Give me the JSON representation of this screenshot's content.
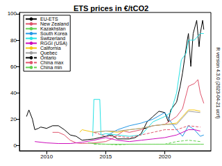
{
  "chart_data": {
    "type": "line",
    "title": "ETS prices in €/tCO2",
    "annotations": [
      "R version 4.3.0 (2023-04-21 ucrt)"
    ],
    "xlim": [
      2007.7,
      2023.9
    ],
    "xticks": [
      2010,
      2015,
      2020
    ],
    "ylim": [
      -4,
      101
    ],
    "yticks": [
      0,
      20,
      40,
      60,
      80,
      100
    ],
    "grid": false,
    "legend": "top-left",
    "series": [
      {
        "name": "EU-ETS",
        "color": "#000000",
        "line_style": "solid",
        "x": [
          2008.3,
          2008.5,
          2008.8,
          2009.0,
          2009.3,
          2009.5,
          2010.0,
          2010.5,
          2011.0,
          2011.5,
          2012.0,
          2012.5,
          2013.0,
          2013.5,
          2014.0,
          2014.5,
          2015.0,
          2015.5,
          2016.0,
          2016.5,
          2017.0,
          2017.5,
          2018.0,
          2018.5,
          2019.0,
          2019.5,
          2020.0,
          2020.3,
          2020.5,
          2021.0,
          2021.3,
          2021.5,
          2021.9,
          2022.0,
          2022.2,
          2022.4,
          2022.7,
          2022.9,
          2023.0,
          2023.2,
          2023.3
        ],
        "values": [
          22,
          27,
          20,
          12,
          13,
          14,
          13,
          15,
          15,
          12,
          8,
          7,
          4,
          4.5,
          5,
          6,
          7,
          8,
          5,
          5,
          5,
          6,
          9,
          18,
          22,
          26,
          25,
          18,
          27,
          33,
          45,
          55,
          80,
          85,
          60,
          85,
          95,
          75,
          85,
          95,
          88
        ]
      },
      {
        "name": "New Zealand",
        "color": "#DF536B",
        "line_style": "solid",
        "x": [
          2010.5,
          2011.0,
          2011.5,
          2012.0,
          2012.5,
          2013.0,
          2014.0,
          2015.0,
          2015.5,
          2016.0,
          2016.5,
          2017.0,
          2018.0,
          2019.0,
          2020.0,
          2020.5,
          2021.0,
          2021.5,
          2022.0,
          2022.5,
          2022.8,
          2023.0,
          2023.3
        ],
        "values": [
          10,
          10,
          8,
          4,
          2,
          1.5,
          2,
          3,
          5,
          8,
          11,
          10,
          12,
          15,
          16,
          19,
          22,
          28,
          45,
          47,
          50,
          40,
          32
        ]
      },
      {
        "name": "Kazakhstan",
        "color": "#61D04F",
        "line_style": "solid",
        "x": [
          2013.5,
          2014.0,
          2015.0,
          2016.0,
          2018.0,
          2019.0,
          2020.0,
          2021.0,
          2022.0,
          2023.0,
          2023.3
        ],
        "values": [
          2,
          1.5,
          1,
          1,
          1,
          1,
          1,
          1,
          1,
          1,
          1
        ]
      },
      {
        "name": "South Korea",
        "color": "#2297E6",
        "line_style": "solid",
        "x": [
          2015.0,
          2016.0,
          2017.0,
          2018.0,
          2019.0,
          2020.0,
          2020.5,
          2021.0,
          2021.5,
          2022.0,
          2022.5,
          2023.0,
          2023.3
        ],
        "values": [
          7,
          12,
          15,
          17,
          20,
          25,
          18,
          12,
          7,
          15,
          12,
          7,
          8
        ]
      },
      {
        "name": "Switzerland",
        "color": "#28E2E5",
        "line_style": "solid",
        "x": [
          2013.9,
          2014.0,
          2014.5,
          2014.6,
          2015.0,
          2016.0,
          2017.0,
          2018.0,
          2019.0,
          2020.0,
          2020.5,
          2021.0,
          2021.4,
          2021.8,
          2022.0,
          2022.5,
          2023.0,
          2023.3
        ],
        "values": [
          7,
          35,
          35,
          8,
          9,
          8,
          7,
          8,
          18,
          22,
          25,
          40,
          65,
          70,
          80,
          80,
          85,
          85
        ]
      },
      {
        "name": "RGGI (USA)",
        "color": "#CD0BBC",
        "line_style": "solid",
        "x": [
          2009.0,
          2010.0,
          2011.0,
          2012.0,
          2013.0,
          2014.0,
          2015.0,
          2016.0,
          2017.0,
          2018.0,
          2019.0,
          2020.0,
          2021.0,
          2021.5,
          2022.0,
          2022.5,
          2023.0
        ],
        "values": [
          3,
          2,
          1.5,
          1.5,
          2.5,
          4,
          6,
          4,
          3,
          4,
          5,
          6,
          8,
          10,
          12,
          12,
          11
        ]
      },
      {
        "name": "California",
        "color": "#F5C710",
        "line_style": "solid",
        "x": [
          2012.8,
          2013.0,
          2014.0,
          2015.0,
          2016.0,
          2017.0,
          2018.0,
          2019.0,
          2020.0,
          2021.0,
          2021.5,
          2022.0,
          2022.5,
          2023.0
        ],
        "values": [
          10,
          12,
          10,
          11,
          10,
          12,
          13,
          15,
          16,
          17,
          22,
          27,
          27,
          26
        ]
      },
      {
        "name": "Quebec",
        "color": "#9E9E9E",
        "line_style": "solid",
        "x": [
          2014.0,
          2015.0,
          2016.0,
          2017.0,
          2018.0,
          2019.0,
          2020.0,
          2021.0,
          2022.0,
          2023.0
        ],
        "values": [
          10,
          11,
          11,
          12,
          13,
          15,
          16,
          16,
          26,
          25
        ]
      },
      {
        "name": "Ontario",
        "color": "#000000",
        "line_style": "dashed",
        "x": [
          2018.2,
          2018.5
        ],
        "values": [
          13,
          13
        ]
      },
      {
        "name": "China max",
        "color": "#DF536B",
        "line_style": "dashed",
        "x": [
          2014.0,
          2015.0,
          2016.0,
          2017.0,
          2018.0,
          2019.0,
          2020.0,
          2021.0,
          2022.0,
          2023.0
        ],
        "values": [
          10,
          7,
          7,
          6,
          8,
          10,
          12,
          12,
          15,
          14
        ]
      },
      {
        "name": "China min",
        "color": "#61D04F",
        "line_style": "dashed",
        "x": [
          2014.0,
          2015.0,
          2016.0,
          2017.0,
          2018.0,
          2019.0,
          2020.0,
          2021.0,
          2022.0,
          2023.0
        ],
        "values": [
          1,
          1,
          0.5,
          1,
          1,
          1,
          1,
          3,
          4,
          3
        ]
      }
    ]
  }
}
